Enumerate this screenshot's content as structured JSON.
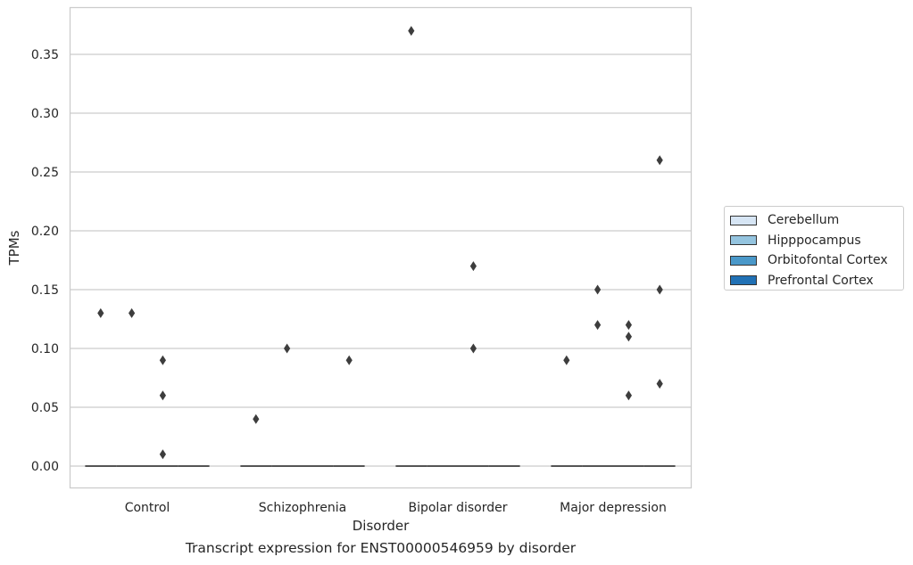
{
  "chart_data": {
    "type": "box",
    "title": "",
    "caption": "Transcript expression for ENST00000546959 by disorder",
    "xlabel": "Disorder",
    "ylabel": "TPMs",
    "ylim": [
      -0.018,
      0.388
    ],
    "yticks": [
      "0.00",
      "0.05",
      "0.10",
      "0.15",
      "0.20",
      "0.25",
      "0.30",
      "0.35"
    ],
    "categories": [
      "Control",
      "Schizophrenia",
      "Bipolar disorder",
      "Major depression"
    ],
    "grid": true,
    "legend_position": "right-outside",
    "series": [
      {
        "name": "Cerebellum",
        "color": "#d6e5f4",
        "medians": [
          0,
          0,
          0,
          0
        ],
        "outliers": [
          [
            0.13
          ],
          [
            0.04
          ],
          [
            0.37
          ],
          [
            0.09
          ]
        ]
      },
      {
        "name": "Hipppocampus",
        "color": "#94c4df",
        "medians": [
          0,
          0,
          0,
          0
        ],
        "outliers": [
          [
            0.13
          ],
          [
            0.1
          ],
          [],
          [
            0.15,
            0.12
          ]
        ]
      },
      {
        "name": "Orbitofontal Cortex",
        "color": "#4a98c9",
        "medians": [
          0,
          0,
          0,
          0
        ],
        "outliers": [
          [
            0.09,
            0.06,
            0.01
          ],
          [],
          [
            0.17,
            0.1
          ],
          [
            0.12,
            0.11,
            0.06
          ]
        ]
      },
      {
        "name": "Prefrontal Cortex",
        "color": "#2171b5",
        "medians": [
          0,
          0,
          0,
          0
        ],
        "outliers": [
          [],
          [
            0.09
          ],
          [],
          [
            0.26,
            0.15,
            0.07
          ]
        ]
      }
    ]
  }
}
